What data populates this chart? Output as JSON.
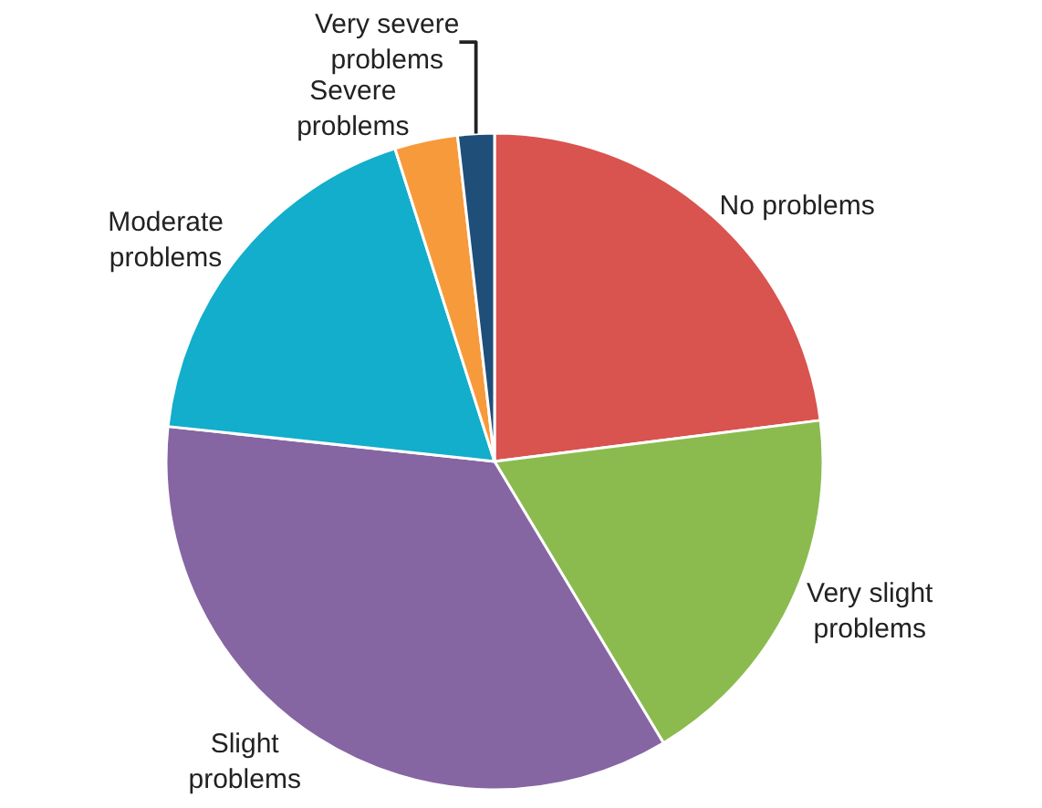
{
  "chart_data": {
    "type": "pie",
    "categories": [
      "No problems",
      "Very slight\nproblems",
      "Slight\nproblems",
      "Moderate\nproblems",
      "Severe\nproblems",
      "Very severe\nproblems"
    ],
    "values": [
      23,
      18.4,
      35.3,
      18.4,
      3.1,
      1.8
    ],
    "colors": [
      "#d9534f",
      "#8bbb4f",
      "#8665a3",
      "#12aecb",
      "#f79a3b",
      "#1f4e79"
    ],
    "legend": false
  }
}
